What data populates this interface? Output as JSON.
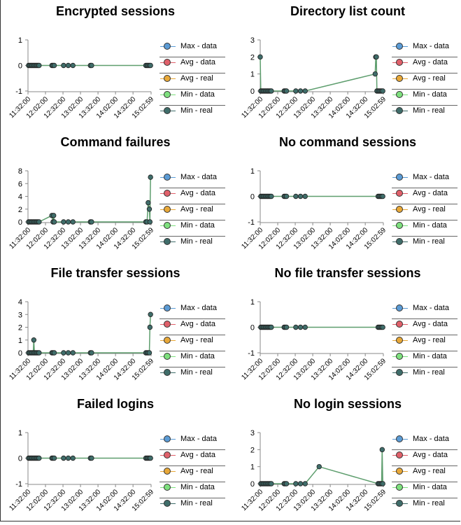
{
  "legend": {
    "items": [
      {
        "label": "Max - data",
        "color": "#5b9bd5"
      },
      {
        "label": "Avg - data",
        "color": "#e0606a"
      },
      {
        "label": "Avg - real",
        "color": "#e8a838"
      },
      {
        "label": "Min - data",
        "color": "#7ee07e"
      },
      {
        "label": "Min - real",
        "color": "#3f6d6a"
      }
    ]
  },
  "line_color": "#5e9e6e",
  "chart_data": [
    {
      "type": "line",
      "title": "Encrypted sessions",
      "xticks": [
        "11:32:00",
        "12:02:00",
        "12:32:00",
        "13:02:00",
        "13:32:00",
        "14:02:00",
        "14:32:00",
        "15:02:59"
      ],
      "yticks": [
        "-1",
        "0",
        "1"
      ],
      "ylim": [
        -1,
        1
      ],
      "x": [
        "11:33",
        "11:35",
        "11:37",
        "11:39",
        "11:41",
        "11:43",
        "11:45",
        "11:47",
        "11:49",
        "11:51",
        "12:13",
        "12:15",
        "12:17",
        "12:33",
        "12:41",
        "12:49",
        "13:19",
        "13:21",
        "14:54",
        "14:56",
        "14:58",
        "15:00",
        "15:02"
      ],
      "y": [
        0,
        0,
        0,
        0,
        0,
        0,
        0,
        0,
        0,
        0,
        0,
        0,
        0,
        0,
        0,
        0,
        0,
        0,
        0,
        0,
        0,
        0,
        0
      ]
    },
    {
      "type": "line",
      "title": "Directory list count",
      "xticks": [
        "11:32:00",
        "12:02:00",
        "12:32:00",
        "13:02:00",
        "13:32:00",
        "14:02:00",
        "14:32:00",
        "15:02:59"
      ],
      "yticks": [
        "0",
        "1",
        "2",
        "3"
      ],
      "ylim": [
        0,
        3
      ],
      "x": [
        "11:32",
        "11:33",
        "11:35",
        "11:37",
        "11:39",
        "11:41",
        "11:43",
        "11:45",
        "11:47",
        "11:49",
        "11:51",
        "12:13",
        "12:15",
        "12:17",
        "12:33",
        "12:41",
        "12:49",
        "14:49",
        "14:50",
        "14:51",
        "14:52",
        "14:54",
        "14:56",
        "14:58",
        "15:00",
        "15:02"
      ],
      "y": [
        2,
        0,
        0,
        0,
        0,
        0,
        0,
        0,
        0,
        0,
        0,
        0,
        0,
        0,
        0,
        0,
        0,
        1,
        2,
        2,
        0,
        0,
        0,
        0,
        0,
        0
      ]
    },
    {
      "type": "line",
      "title": "Command failures",
      "xticks": [
        "11:32:00",
        "12:02:00",
        "12:32:00",
        "13:02:00",
        "13:32:00",
        "14:02:00",
        "14:32:00",
        "15:02:59"
      ],
      "yticks": [
        "0",
        "2",
        "4",
        "6",
        "8"
      ],
      "ylim": [
        0,
        8
      ],
      "x": [
        "11:33",
        "11:35",
        "11:37",
        "11:39",
        "11:41",
        "11:43",
        "11:45",
        "11:47",
        "11:49",
        "11:51",
        "12:13",
        "12:15",
        "12:16",
        "12:17",
        "12:33",
        "12:41",
        "12:49",
        "13:19",
        "13:21",
        "14:54",
        "14:56",
        "14:58",
        "15:00",
        "15:01",
        "15:02"
      ],
      "y": [
        0,
        0,
        0,
        0,
        0,
        0,
        0,
        0,
        0,
        0,
        1,
        0,
        1,
        0,
        0,
        0,
        0,
        0,
        0,
        0,
        0,
        3,
        2,
        0,
        7
      ]
    },
    {
      "type": "line",
      "title": "No command sessions",
      "xticks": [
        "11:32:00",
        "12:02:00",
        "12:32:00",
        "13:02:00",
        "13:32:00",
        "14:02:00",
        "14:32:00",
        "15:02:59"
      ],
      "yticks": [
        "-1",
        "0",
        "1"
      ],
      "ylim": [
        -1,
        1
      ],
      "x": [
        "11:33",
        "11:35",
        "11:37",
        "11:39",
        "11:41",
        "11:43",
        "11:45",
        "11:47",
        "11:49",
        "11:51",
        "12:13",
        "12:15",
        "12:17",
        "12:33",
        "12:41",
        "12:49",
        "14:54",
        "14:56",
        "14:58",
        "15:00",
        "15:02"
      ],
      "y": [
        0,
        0,
        0,
        0,
        0,
        0,
        0,
        0,
        0,
        0,
        0,
        0,
        0,
        0,
        0,
        0,
        0,
        0,
        0,
        0,
        0
      ]
    },
    {
      "type": "line",
      "title": "File transfer sessions",
      "xticks": [
        "11:32:00",
        "12:02:00",
        "12:32:00",
        "13:02:00",
        "13:32:00",
        "14:02:00",
        "14:32:00",
        "15:02:59"
      ],
      "yticks": [
        "0",
        "1",
        "2",
        "3",
        "4"
      ],
      "ylim": [
        0,
        4
      ],
      "x": [
        "11:33",
        "11:35",
        "11:37",
        "11:39",
        "11:41",
        "11:42",
        "11:43",
        "11:45",
        "11:47",
        "11:49",
        "11:51",
        "12:13",
        "12:15",
        "12:17",
        "12:33",
        "12:41",
        "12:49",
        "13:19",
        "13:21",
        "14:54",
        "14:56",
        "14:58",
        "15:00",
        "15:01",
        "15:02"
      ],
      "y": [
        0,
        0,
        0,
        0,
        0,
        1,
        0,
        0,
        0,
        0,
        0,
        0,
        0,
        0,
        0,
        0,
        0,
        0,
        0,
        0,
        0,
        0,
        0,
        2,
        3
      ]
    },
    {
      "type": "line",
      "title": "No file transfer sessions",
      "xticks": [
        "11:32:00",
        "12:02:00",
        "12:32:00",
        "13:02:00",
        "13:32:00",
        "14:02:00",
        "14:32:00",
        "15:02:59"
      ],
      "yticks": [
        "-1",
        "0",
        "1"
      ],
      "ylim": [
        -1,
        1
      ],
      "x": [
        "11:33",
        "11:35",
        "11:37",
        "11:39",
        "11:41",
        "11:43",
        "11:45",
        "11:47",
        "11:49",
        "11:51",
        "12:13",
        "12:15",
        "12:17",
        "12:33",
        "12:41",
        "12:49",
        "14:54",
        "14:56",
        "14:58",
        "15:00",
        "15:02"
      ],
      "y": [
        0,
        0,
        0,
        0,
        0,
        0,
        0,
        0,
        0,
        0,
        0,
        0,
        0,
        0,
        0,
        0,
        0,
        0,
        0,
        0,
        0
      ]
    },
    {
      "type": "line",
      "title": "Failed logins",
      "xticks": [
        "11:32:00",
        "12:02:00",
        "12:32:00",
        "13:02:00",
        "13:32:00",
        "14:02:00",
        "14:32:00",
        "15:02:59"
      ],
      "yticks": [
        "-1",
        "0",
        "1"
      ],
      "ylim": [
        -1,
        1
      ],
      "x": [
        "11:33",
        "11:35",
        "11:37",
        "11:39",
        "11:41",
        "11:43",
        "11:45",
        "11:47",
        "11:49",
        "11:51",
        "12:13",
        "12:15",
        "12:17",
        "12:33",
        "12:41",
        "12:49",
        "13:19",
        "13:21",
        "14:54",
        "14:56",
        "14:58",
        "15:00",
        "15:02"
      ],
      "y": [
        0,
        0,
        0,
        0,
        0,
        0,
        0,
        0,
        0,
        0,
        0,
        0,
        0,
        0,
        0,
        0,
        0,
        0,
        0,
        0,
        0,
        0,
        0
      ]
    },
    {
      "type": "line",
      "title": "No login sessions",
      "xticks": [
        "11:32:00",
        "12:02:00",
        "12:32:00",
        "13:02:00",
        "13:32:00",
        "14:02:00",
        "14:32:00",
        "15:02:59"
      ],
      "yticks": [
        "0",
        "1",
        "2",
        "3"
      ],
      "ylim": [
        0,
        3
      ],
      "x": [
        "11:33",
        "11:35",
        "11:37",
        "11:39",
        "11:41",
        "11:43",
        "11:45",
        "11:47",
        "11:49",
        "11:51",
        "12:13",
        "12:15",
        "12:17",
        "12:33",
        "12:41",
        "12:49",
        "13:13",
        "14:54",
        "14:56",
        "14:58",
        "15:00",
        "15:01",
        "15:02"
      ],
      "y": [
        0,
        0,
        0,
        0,
        0,
        0,
        0,
        0,
        0,
        0,
        0,
        0,
        0,
        0,
        0,
        0,
        1,
        0,
        0,
        0,
        0,
        2,
        0
      ]
    }
  ]
}
